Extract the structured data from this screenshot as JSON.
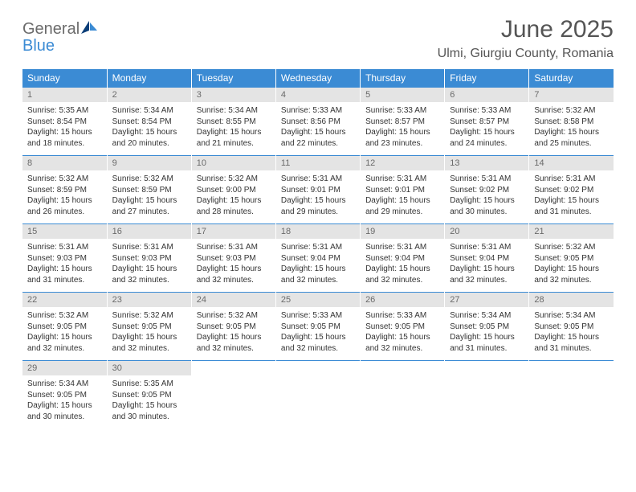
{
  "logo": {
    "general": "General",
    "blue": "Blue"
  },
  "title": "June 2025",
  "location": "Ulmi, Giurgiu County, Romania",
  "colors": {
    "header_bg": "#3b8bd4",
    "header_text": "#ffffff",
    "daynum_bg": "#e4e4e4",
    "daynum_text": "#6a6a6a",
    "body_text": "#333333",
    "rule": "#3b8bd4",
    "logo_gray": "#6b6b6b",
    "logo_blue": "#3b8bd4"
  },
  "weekdays": [
    "Sunday",
    "Monday",
    "Tuesday",
    "Wednesday",
    "Thursday",
    "Friday",
    "Saturday"
  ],
  "weeks": [
    [
      {
        "n": "1",
        "sr": "Sunrise: 5:35 AM",
        "ss": "Sunset: 8:54 PM",
        "d1": "Daylight: 15 hours",
        "d2": "and 18 minutes."
      },
      {
        "n": "2",
        "sr": "Sunrise: 5:34 AM",
        "ss": "Sunset: 8:54 PM",
        "d1": "Daylight: 15 hours",
        "d2": "and 20 minutes."
      },
      {
        "n": "3",
        "sr": "Sunrise: 5:34 AM",
        "ss": "Sunset: 8:55 PM",
        "d1": "Daylight: 15 hours",
        "d2": "and 21 minutes."
      },
      {
        "n": "4",
        "sr": "Sunrise: 5:33 AM",
        "ss": "Sunset: 8:56 PM",
        "d1": "Daylight: 15 hours",
        "d2": "and 22 minutes."
      },
      {
        "n": "5",
        "sr": "Sunrise: 5:33 AM",
        "ss": "Sunset: 8:57 PM",
        "d1": "Daylight: 15 hours",
        "d2": "and 23 minutes."
      },
      {
        "n": "6",
        "sr": "Sunrise: 5:33 AM",
        "ss": "Sunset: 8:57 PM",
        "d1": "Daylight: 15 hours",
        "d2": "and 24 minutes."
      },
      {
        "n": "7",
        "sr": "Sunrise: 5:32 AM",
        "ss": "Sunset: 8:58 PM",
        "d1": "Daylight: 15 hours",
        "d2": "and 25 minutes."
      }
    ],
    [
      {
        "n": "8",
        "sr": "Sunrise: 5:32 AM",
        "ss": "Sunset: 8:59 PM",
        "d1": "Daylight: 15 hours",
        "d2": "and 26 minutes."
      },
      {
        "n": "9",
        "sr": "Sunrise: 5:32 AM",
        "ss": "Sunset: 8:59 PM",
        "d1": "Daylight: 15 hours",
        "d2": "and 27 minutes."
      },
      {
        "n": "10",
        "sr": "Sunrise: 5:32 AM",
        "ss": "Sunset: 9:00 PM",
        "d1": "Daylight: 15 hours",
        "d2": "and 28 minutes."
      },
      {
        "n": "11",
        "sr": "Sunrise: 5:31 AM",
        "ss": "Sunset: 9:01 PM",
        "d1": "Daylight: 15 hours",
        "d2": "and 29 minutes."
      },
      {
        "n": "12",
        "sr": "Sunrise: 5:31 AM",
        "ss": "Sunset: 9:01 PM",
        "d1": "Daylight: 15 hours",
        "d2": "and 29 minutes."
      },
      {
        "n": "13",
        "sr": "Sunrise: 5:31 AM",
        "ss": "Sunset: 9:02 PM",
        "d1": "Daylight: 15 hours",
        "d2": "and 30 minutes."
      },
      {
        "n": "14",
        "sr": "Sunrise: 5:31 AM",
        "ss": "Sunset: 9:02 PM",
        "d1": "Daylight: 15 hours",
        "d2": "and 31 minutes."
      }
    ],
    [
      {
        "n": "15",
        "sr": "Sunrise: 5:31 AM",
        "ss": "Sunset: 9:03 PM",
        "d1": "Daylight: 15 hours",
        "d2": "and 31 minutes."
      },
      {
        "n": "16",
        "sr": "Sunrise: 5:31 AM",
        "ss": "Sunset: 9:03 PM",
        "d1": "Daylight: 15 hours",
        "d2": "and 32 minutes."
      },
      {
        "n": "17",
        "sr": "Sunrise: 5:31 AM",
        "ss": "Sunset: 9:03 PM",
        "d1": "Daylight: 15 hours",
        "d2": "and 32 minutes."
      },
      {
        "n": "18",
        "sr": "Sunrise: 5:31 AM",
        "ss": "Sunset: 9:04 PM",
        "d1": "Daylight: 15 hours",
        "d2": "and 32 minutes."
      },
      {
        "n": "19",
        "sr": "Sunrise: 5:31 AM",
        "ss": "Sunset: 9:04 PM",
        "d1": "Daylight: 15 hours",
        "d2": "and 32 minutes."
      },
      {
        "n": "20",
        "sr": "Sunrise: 5:31 AM",
        "ss": "Sunset: 9:04 PM",
        "d1": "Daylight: 15 hours",
        "d2": "and 32 minutes."
      },
      {
        "n": "21",
        "sr": "Sunrise: 5:32 AM",
        "ss": "Sunset: 9:05 PM",
        "d1": "Daylight: 15 hours",
        "d2": "and 32 minutes."
      }
    ],
    [
      {
        "n": "22",
        "sr": "Sunrise: 5:32 AM",
        "ss": "Sunset: 9:05 PM",
        "d1": "Daylight: 15 hours",
        "d2": "and 32 minutes."
      },
      {
        "n": "23",
        "sr": "Sunrise: 5:32 AM",
        "ss": "Sunset: 9:05 PM",
        "d1": "Daylight: 15 hours",
        "d2": "and 32 minutes."
      },
      {
        "n": "24",
        "sr": "Sunrise: 5:32 AM",
        "ss": "Sunset: 9:05 PM",
        "d1": "Daylight: 15 hours",
        "d2": "and 32 minutes."
      },
      {
        "n": "25",
        "sr": "Sunrise: 5:33 AM",
        "ss": "Sunset: 9:05 PM",
        "d1": "Daylight: 15 hours",
        "d2": "and 32 minutes."
      },
      {
        "n": "26",
        "sr": "Sunrise: 5:33 AM",
        "ss": "Sunset: 9:05 PM",
        "d1": "Daylight: 15 hours",
        "d2": "and 32 minutes."
      },
      {
        "n": "27",
        "sr": "Sunrise: 5:34 AM",
        "ss": "Sunset: 9:05 PM",
        "d1": "Daylight: 15 hours",
        "d2": "and 31 minutes."
      },
      {
        "n": "28",
        "sr": "Sunrise: 5:34 AM",
        "ss": "Sunset: 9:05 PM",
        "d1": "Daylight: 15 hours",
        "d2": "and 31 minutes."
      }
    ],
    [
      {
        "n": "29",
        "sr": "Sunrise: 5:34 AM",
        "ss": "Sunset: 9:05 PM",
        "d1": "Daylight: 15 hours",
        "d2": "and 30 minutes."
      },
      {
        "n": "30",
        "sr": "Sunrise: 5:35 AM",
        "ss": "Sunset: 9:05 PM",
        "d1": "Daylight: 15 hours",
        "d2": "and 30 minutes."
      },
      {
        "empty": true
      },
      {
        "empty": true
      },
      {
        "empty": true
      },
      {
        "empty": true
      },
      {
        "empty": true
      }
    ]
  ]
}
